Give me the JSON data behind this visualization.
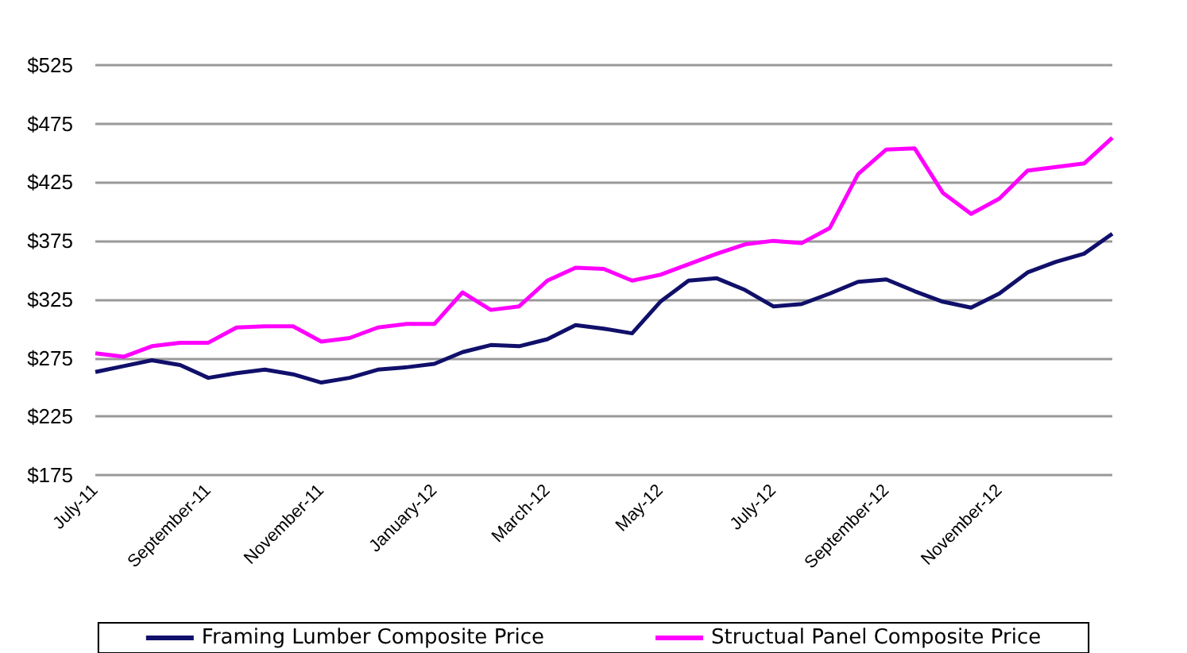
{
  "chart_data": {
    "type": "line",
    "categories": [
      "July-11",
      null,
      null,
      null,
      "September-11",
      null,
      null,
      null,
      "November-11",
      null,
      null,
      null,
      "January-12",
      null,
      null,
      null,
      "March-12",
      null,
      null,
      null,
      "May-12",
      null,
      null,
      null,
      "July-12",
      null,
      null,
      null,
      "September-12",
      null,
      null,
      null,
      "November-12",
      null,
      null,
      null,
      null
    ],
    "series": [
      {
        "name": "Framing Lumber Composite Price",
        "color": "#10106b",
        "values": [
          263,
          268,
          273,
          269,
          258,
          262,
          265,
          261,
          254,
          258,
          265,
          267,
          270,
          280,
          286,
          285,
          291,
          303,
          300,
          296,
          323,
          341,
          343,
          333,
          319,
          321,
          330,
          340,
          342,
          332,
          323,
          318,
          330,
          348,
          357,
          364,
          381
        ]
      },
      {
        "name": "Structual Panel Composite Price",
        "color": "#ff00ff",
        "values": [
          279,
          276,
          285,
          288,
          288,
          301,
          302,
          302,
          289,
          292,
          301,
          304,
          304,
          331,
          316,
          319,
          341,
          352,
          351,
          341,
          346,
          355,
          364,
          372,
          375,
          373,
          386,
          432,
          453,
          454,
          416,
          398,
          411,
          435,
          438,
          441,
          463
        ]
      }
    ],
    "ylim": [
      175,
      525
    ],
    "yticks": [
      {
        "value": 175,
        "label": "$175"
      },
      {
        "value": 225,
        "label": "$225"
      },
      {
        "value": 275,
        "label": "$275"
      },
      {
        "value": 325,
        "label": "$325"
      },
      {
        "value": 375,
        "label": "$375"
      },
      {
        "value": 425,
        "label": "$425"
      },
      {
        "value": 475,
        "label": "$475"
      },
      {
        "value": 525,
        "label": "$525"
      }
    ],
    "grid": "y",
    "legend": "bottom",
    "marker": "none",
    "line_style": "solid"
  }
}
